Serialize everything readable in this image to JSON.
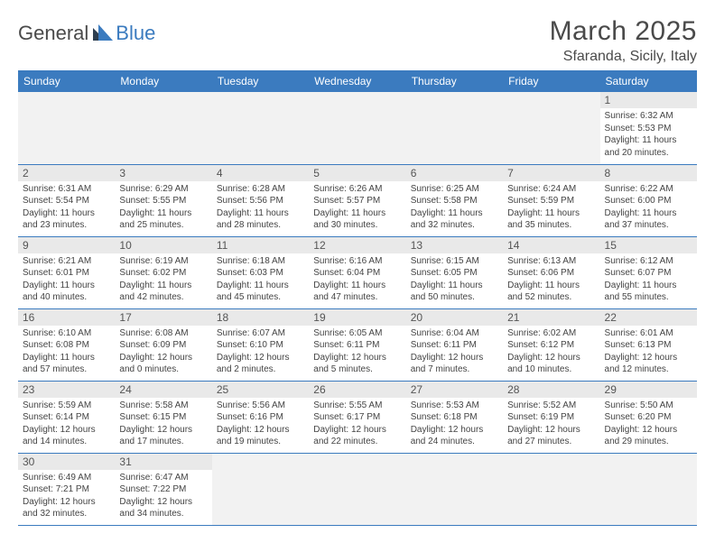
{
  "logo": {
    "part1": "General",
    "part2": "Blue"
  },
  "title": "March 2025",
  "location": "Sfaranda, Sicily, Italy",
  "colors": {
    "header_bg": "#3b7bbf",
    "header_text": "#ffffff",
    "border": "#3b7bbf",
    "daynum_bg": "#e9e9e9",
    "empty_bg": "#f2f2f2",
    "text": "#444444",
    "title_text": "#4a4a4a"
  },
  "daysOfWeek": [
    "Sunday",
    "Monday",
    "Tuesday",
    "Wednesday",
    "Thursday",
    "Friday",
    "Saturday"
  ],
  "weeks": [
    [
      null,
      null,
      null,
      null,
      null,
      null,
      {
        "n": "1",
        "sr": "Sunrise: 6:32 AM",
        "ss": "Sunset: 5:53 PM",
        "dl": "Daylight: 11 hours and 20 minutes."
      }
    ],
    [
      {
        "n": "2",
        "sr": "Sunrise: 6:31 AM",
        "ss": "Sunset: 5:54 PM",
        "dl": "Daylight: 11 hours and 23 minutes."
      },
      {
        "n": "3",
        "sr": "Sunrise: 6:29 AM",
        "ss": "Sunset: 5:55 PM",
        "dl": "Daylight: 11 hours and 25 minutes."
      },
      {
        "n": "4",
        "sr": "Sunrise: 6:28 AM",
        "ss": "Sunset: 5:56 PM",
        "dl": "Daylight: 11 hours and 28 minutes."
      },
      {
        "n": "5",
        "sr": "Sunrise: 6:26 AM",
        "ss": "Sunset: 5:57 PM",
        "dl": "Daylight: 11 hours and 30 minutes."
      },
      {
        "n": "6",
        "sr": "Sunrise: 6:25 AM",
        "ss": "Sunset: 5:58 PM",
        "dl": "Daylight: 11 hours and 32 minutes."
      },
      {
        "n": "7",
        "sr": "Sunrise: 6:24 AM",
        "ss": "Sunset: 5:59 PM",
        "dl": "Daylight: 11 hours and 35 minutes."
      },
      {
        "n": "8",
        "sr": "Sunrise: 6:22 AM",
        "ss": "Sunset: 6:00 PM",
        "dl": "Daylight: 11 hours and 37 minutes."
      }
    ],
    [
      {
        "n": "9",
        "sr": "Sunrise: 6:21 AM",
        "ss": "Sunset: 6:01 PM",
        "dl": "Daylight: 11 hours and 40 minutes."
      },
      {
        "n": "10",
        "sr": "Sunrise: 6:19 AM",
        "ss": "Sunset: 6:02 PM",
        "dl": "Daylight: 11 hours and 42 minutes."
      },
      {
        "n": "11",
        "sr": "Sunrise: 6:18 AM",
        "ss": "Sunset: 6:03 PM",
        "dl": "Daylight: 11 hours and 45 minutes."
      },
      {
        "n": "12",
        "sr": "Sunrise: 6:16 AM",
        "ss": "Sunset: 6:04 PM",
        "dl": "Daylight: 11 hours and 47 minutes."
      },
      {
        "n": "13",
        "sr": "Sunrise: 6:15 AM",
        "ss": "Sunset: 6:05 PM",
        "dl": "Daylight: 11 hours and 50 minutes."
      },
      {
        "n": "14",
        "sr": "Sunrise: 6:13 AM",
        "ss": "Sunset: 6:06 PM",
        "dl": "Daylight: 11 hours and 52 minutes."
      },
      {
        "n": "15",
        "sr": "Sunrise: 6:12 AM",
        "ss": "Sunset: 6:07 PM",
        "dl": "Daylight: 11 hours and 55 minutes."
      }
    ],
    [
      {
        "n": "16",
        "sr": "Sunrise: 6:10 AM",
        "ss": "Sunset: 6:08 PM",
        "dl": "Daylight: 11 hours and 57 minutes."
      },
      {
        "n": "17",
        "sr": "Sunrise: 6:08 AM",
        "ss": "Sunset: 6:09 PM",
        "dl": "Daylight: 12 hours and 0 minutes."
      },
      {
        "n": "18",
        "sr": "Sunrise: 6:07 AM",
        "ss": "Sunset: 6:10 PM",
        "dl": "Daylight: 12 hours and 2 minutes."
      },
      {
        "n": "19",
        "sr": "Sunrise: 6:05 AM",
        "ss": "Sunset: 6:11 PM",
        "dl": "Daylight: 12 hours and 5 minutes."
      },
      {
        "n": "20",
        "sr": "Sunrise: 6:04 AM",
        "ss": "Sunset: 6:11 PM",
        "dl": "Daylight: 12 hours and 7 minutes."
      },
      {
        "n": "21",
        "sr": "Sunrise: 6:02 AM",
        "ss": "Sunset: 6:12 PM",
        "dl": "Daylight: 12 hours and 10 minutes."
      },
      {
        "n": "22",
        "sr": "Sunrise: 6:01 AM",
        "ss": "Sunset: 6:13 PM",
        "dl": "Daylight: 12 hours and 12 minutes."
      }
    ],
    [
      {
        "n": "23",
        "sr": "Sunrise: 5:59 AM",
        "ss": "Sunset: 6:14 PM",
        "dl": "Daylight: 12 hours and 14 minutes."
      },
      {
        "n": "24",
        "sr": "Sunrise: 5:58 AM",
        "ss": "Sunset: 6:15 PM",
        "dl": "Daylight: 12 hours and 17 minutes."
      },
      {
        "n": "25",
        "sr": "Sunrise: 5:56 AM",
        "ss": "Sunset: 6:16 PM",
        "dl": "Daylight: 12 hours and 19 minutes."
      },
      {
        "n": "26",
        "sr": "Sunrise: 5:55 AM",
        "ss": "Sunset: 6:17 PM",
        "dl": "Daylight: 12 hours and 22 minutes."
      },
      {
        "n": "27",
        "sr": "Sunrise: 5:53 AM",
        "ss": "Sunset: 6:18 PM",
        "dl": "Daylight: 12 hours and 24 minutes."
      },
      {
        "n": "28",
        "sr": "Sunrise: 5:52 AM",
        "ss": "Sunset: 6:19 PM",
        "dl": "Daylight: 12 hours and 27 minutes."
      },
      {
        "n": "29",
        "sr": "Sunrise: 5:50 AM",
        "ss": "Sunset: 6:20 PM",
        "dl": "Daylight: 12 hours and 29 minutes."
      }
    ],
    [
      {
        "n": "30",
        "sr": "Sunrise: 6:49 AM",
        "ss": "Sunset: 7:21 PM",
        "dl": "Daylight: 12 hours and 32 minutes."
      },
      {
        "n": "31",
        "sr": "Sunrise: 6:47 AM",
        "ss": "Sunset: 7:22 PM",
        "dl": "Daylight: 12 hours and 34 minutes."
      },
      null,
      null,
      null,
      null,
      null
    ]
  ]
}
